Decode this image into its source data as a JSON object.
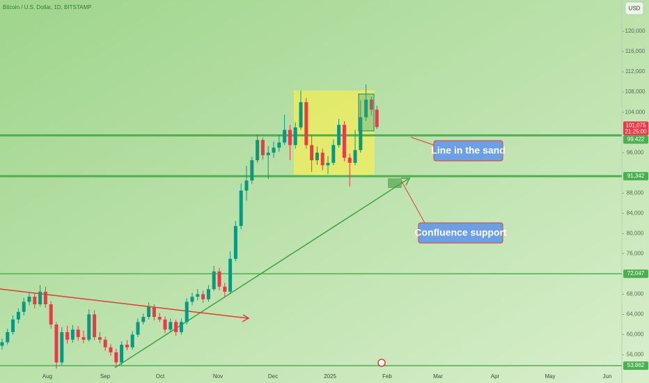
{
  "chart_data": {
    "type": "candlestick",
    "title": "Bitcoin / U.S. Dollar, 1D, BITSTAMP",
    "currency": "USD",
    "ylim": [
      52500,
      126200
    ],
    "yticks": [
      {
        "value": 120000,
        "label": "120,000"
      },
      {
        "value": 116000,
        "label": "116,000"
      },
      {
        "value": 112000,
        "label": "112,000"
      },
      {
        "value": 108000,
        "label": "108,000"
      },
      {
        "value": 104000,
        "label": "104,000"
      },
      {
        "value": 96000,
        "label": "96,000"
      },
      {
        "value": 88000,
        "label": "88,000"
      },
      {
        "value": 84000,
        "label": "84,000"
      },
      {
        "value": 80000,
        "label": "80,000"
      },
      {
        "value": 76000,
        "label": "76,000"
      },
      {
        "value": 68000,
        "label": "68,000"
      },
      {
        "value": 64000,
        "label": "64,000"
      },
      {
        "value": 60000,
        "label": "60,000"
      },
      {
        "value": 56000,
        "label": "56,000"
      }
    ],
    "xticks": [
      "Aug",
      "Sep",
      "Oct",
      "Nov",
      "Dec",
      "2025",
      "Feb",
      "Mar",
      "Apr",
      "May",
      "Jun"
    ],
    "up_color": "#089981",
    "down_color": "#f23645",
    "candles": [
      [
        57800,
        59200,
        57000,
        58500
      ],
      [
        58500,
        61200,
        58000,
        60500
      ],
      [
        60500,
        63800,
        60000,
        63000
      ],
      [
        63000,
        65200,
        62200,
        64500
      ],
      [
        64500,
        67300,
        63800,
        66500
      ],
      [
        66500,
        68400,
        65800,
        67500
      ],
      [
        67500,
        68200,
        65200,
        66000
      ],
      [
        66000,
        69800,
        65500,
        68500
      ],
      [
        68500,
        69500,
        65300,
        66000
      ],
      [
        66000,
        66600,
        61200,
        62000
      ],
      [
        62000,
        62500,
        53300,
        54500
      ],
      [
        54500,
        61500,
        54000,
        60500
      ],
      [
        60500,
        61800,
        58200,
        59000
      ],
      [
        59000,
        61900,
        58400,
        61000
      ],
      [
        61000,
        61700,
        58800,
        59500
      ],
      [
        59500,
        60800,
        58300,
        59000
      ],
      [
        59000,
        65000,
        58600,
        64000
      ],
      [
        64000,
        64800,
        58900,
        59500
      ],
      [
        59500,
        60500,
        58300,
        59000
      ],
      [
        59000,
        59600,
        56800,
        57500
      ],
      [
        57500,
        58200,
        55800,
        56500
      ],
      [
        56500,
        57200,
        53700,
        54500
      ],
      [
        54500,
        58700,
        54000,
        58000
      ],
      [
        58000,
        58900,
        56900,
        57500
      ],
      [
        57500,
        60700,
        57000,
        60000
      ],
      [
        60000,
        63200,
        59500,
        62500
      ],
      [
        62500,
        64200,
        62000,
        63500
      ],
      [
        63500,
        66400,
        63000,
        65500
      ],
      [
        65500,
        66000,
        62800,
        63500
      ],
      [
        63500,
        64300,
        62500,
        63000
      ],
      [
        63000,
        63600,
        60300,
        61000
      ],
      [
        61000,
        63200,
        60500,
        62500
      ],
      [
        62500,
        63000,
        59800,
        60500
      ],
      [
        60500,
        63200,
        60000,
        62500
      ],
      [
        62500,
        67200,
        62000,
        66500
      ],
      [
        66500,
        68300,
        65800,
        67500
      ],
      [
        67500,
        69000,
        66800,
        68000
      ],
      [
        68000,
        68700,
        66300,
        67000
      ],
      [
        67000,
        69800,
        66500,
        69000
      ],
      [
        69000,
        73600,
        68600,
        72500
      ],
      [
        72500,
        73200,
        68800,
        69500
      ],
      [
        69500,
        70300,
        67500,
        68500
      ],
      [
        68500,
        76500,
        68000,
        75000
      ],
      [
        75000,
        82500,
        74500,
        81500
      ],
      [
        81500,
        89900,
        80800,
        88500
      ],
      [
        88500,
        93400,
        86500,
        90500
      ],
      [
        90500,
        95200,
        89800,
        94500
      ],
      [
        94500,
        99600,
        94000,
        98500
      ],
      [
        98500,
        99000,
        94600,
        95500
      ],
      [
        95500,
        97300,
        90800,
        96000
      ],
      [
        96000,
        98200,
        95000,
        97000
      ],
      [
        97000,
        99500,
        96200,
        98000
      ],
      [
        98000,
        103500,
        97500,
        100500
      ],
      [
        100500,
        101500,
        94500,
        97500
      ],
      [
        97500,
        102000,
        96800,
        101000
      ],
      [
        101000,
        108300,
        100500,
        106000
      ],
      [
        106000,
        106800,
        96800,
        97500
      ],
      [
        97500,
        99500,
        92200,
        94500
      ],
      [
        94500,
        97200,
        93600,
        96000
      ],
      [
        96000,
        96800,
        92500,
        93500
      ],
      [
        93500,
        95300,
        91800,
        94000
      ],
      [
        94000,
        98600,
        93500,
        97500
      ],
      [
        97500,
        102700,
        97000,
        101500
      ],
      [
        101500,
        102200,
        94300,
        95000
      ],
      [
        95000,
        95800,
        89300,
        94000
      ],
      [
        94000,
        100500,
        93500,
        96500
      ],
      [
        96500,
        106400,
        96000,
        103000
      ],
      [
        103000,
        109500,
        102300,
        106500
      ],
      [
        106500,
        107100,
        103400,
        104500
      ],
      [
        104500,
        105300,
        100700,
        101075
      ]
    ],
    "last_price": {
      "value": 101075,
      "label": "101,075"
    },
    "countdown": "21:25:00",
    "level_color": "#4caf50",
    "levels": [
      {
        "value": 99422,
        "label": "99,422"
      },
      {
        "value": 91342,
        "label": "91,342"
      },
      {
        "value": 72047,
        "label": "72,047"
      },
      {
        "value": 53862,
        "label": "53,862"
      }
    ],
    "annotations": [
      "Line in the sand",
      "Confluence support"
    ]
  }
}
